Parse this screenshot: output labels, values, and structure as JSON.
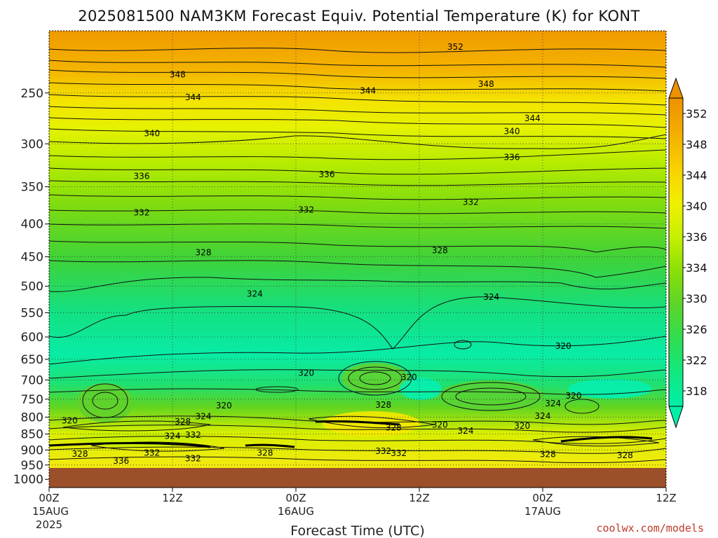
{
  "title": "2025081500 NAM3KM Forecast Equiv. Potential Temperature (K) for KONT",
  "credit": "coolwx.com/models",
  "colors": {
    "ground": "#9b4f2a",
    "isoline": "#111111",
    "scale": [
      "#00f0a8",
      "#10e880",
      "#30de50",
      "#5cd428",
      "#8ae008",
      "#c6f000",
      "#f0f000",
      "#f8d400",
      "#f4b000",
      "#ee9400"
    ]
  },
  "chart_data": {
    "type": "heatmap",
    "title": "2025081500 NAM3KM Forecast Equiv. Potential Temperature (K) for KONT",
    "xlabel": "Forecast Time (UTC)",
    "ylabel": "",
    "x_range_hours": [
      0,
      60
    ],
    "y_range_hPa": [
      200,
      1030
    ],
    "y_ticks": [
      "250",
      "300",
      "350",
      "400",
      "450",
      "500",
      "550",
      "600",
      "650",
      "700",
      "750",
      "800",
      "850",
      "900",
      "950",
      "1000"
    ],
    "x_ticks": [
      {
        "hour": 0,
        "time": "00Z",
        "date": "15AUG",
        "year": "2025"
      },
      {
        "hour": 12,
        "time": "12Z",
        "date": "",
        "year": ""
      },
      {
        "hour": 24,
        "time": "00Z",
        "date": "16AUG",
        "year": ""
      },
      {
        "hour": 36,
        "time": "12Z",
        "date": "",
        "year": ""
      },
      {
        "hour": 48,
        "time": "00Z",
        "date": "17AUG",
        "year": ""
      },
      {
        "hour": 60,
        "time": "12Z",
        "date": "",
        "year": ""
      }
    ],
    "colorbar_ticks": [
      "352",
      "348",
      "344",
      "340",
      "336",
      "334",
      "330",
      "326",
      "322",
      "318"
    ],
    "grid": true,
    "legend": "colorbar right",
    "contour_labels": [
      {
        "text": "352",
        "hour": 39.5,
        "p": 212
      },
      {
        "text": "348",
        "hour": 12.5,
        "p": 234
      },
      {
        "text": "348",
        "hour": 42.5,
        "p": 242
      },
      {
        "text": "344",
        "hour": 14,
        "p": 254
      },
      {
        "text": "344",
        "hour": 31,
        "p": 248
      },
      {
        "text": "344",
        "hour": 47,
        "p": 274
      },
      {
        "text": "340",
        "hour": 10,
        "p": 289
      },
      {
        "text": "340",
        "hour": 45,
        "p": 287
      },
      {
        "text": "336",
        "hour": 9,
        "p": 337
      },
      {
        "text": "336",
        "hour": 27,
        "p": 335
      },
      {
        "text": "336",
        "hour": 45,
        "p": 315
      },
      {
        "text": "332",
        "hour": 9,
        "p": 384
      },
      {
        "text": "332",
        "hour": 25,
        "p": 380
      },
      {
        "text": "332",
        "hour": 41,
        "p": 370
      },
      {
        "text": "328",
        "hour": 15,
        "p": 443
      },
      {
        "text": "328",
        "hour": 38,
        "p": 440
      },
      {
        "text": "324",
        "hour": 20,
        "p": 514
      },
      {
        "text": "324",
        "hour": 43,
        "p": 520
      },
      {
        "text": "320",
        "hour": 50,
        "p": 620
      },
      {
        "text": "320",
        "hour": 25,
        "p": 683
      },
      {
        "text": "320",
        "hour": 35,
        "p": 693
      },
      {
        "text": "320",
        "hour": 17,
        "p": 768
      },
      {
        "text": "320",
        "hour": 51,
        "p": 741
      },
      {
        "text": "320",
        "hour": 2,
        "p": 810
      },
      {
        "text": "320",
        "hour": 38,
        "p": 823
      },
      {
        "text": "320",
        "hour": 46,
        "p": 826
      },
      {
        "text": "324",
        "hour": 15,
        "p": 798
      },
      {
        "text": "324",
        "hour": 12,
        "p": 856
      },
      {
        "text": "324",
        "hour": 40.5,
        "p": 840
      },
      {
        "text": "324",
        "hour": 49,
        "p": 762
      },
      {
        "text": "324",
        "hour": 48,
        "p": 797
      },
      {
        "text": "328",
        "hour": 13,
        "p": 813
      },
      {
        "text": "328",
        "hour": 32.5,
        "p": 766
      },
      {
        "text": "328",
        "hour": 33.5,
        "p": 831
      },
      {
        "text": "328",
        "hour": 3,
        "p": 913
      },
      {
        "text": "328",
        "hour": 21,
        "p": 910
      },
      {
        "text": "328",
        "hour": 48.5,
        "p": 914
      },
      {
        "text": "328",
        "hour": 56,
        "p": 918
      },
      {
        "text": "332",
        "hour": 14,
        "p": 853
      },
      {
        "text": "332",
        "hour": 10,
        "p": 910
      },
      {
        "text": "332",
        "hour": 14,
        "p": 928
      },
      {
        "text": "332",
        "hour": 32.5,
        "p": 904
      },
      {
        "text": "332",
        "hour": 34,
        "p": 911
      },
      {
        "text": "336",
        "hour": 7,
        "p": 936
      }
    ]
  }
}
